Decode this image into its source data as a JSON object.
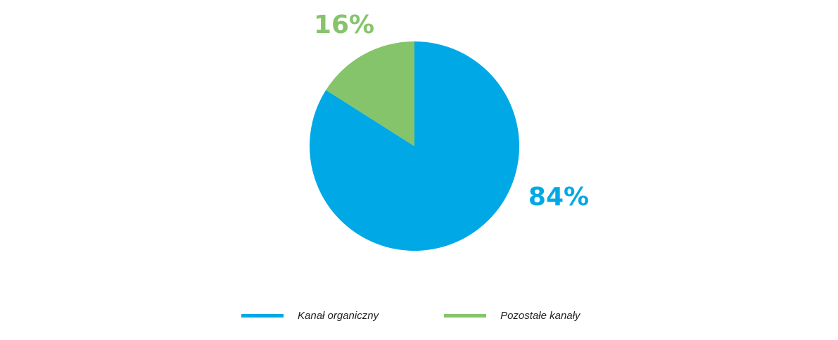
{
  "chart_data": {
    "type": "pie",
    "slices": [
      {
        "label": "Kanał organiczny",
        "value": 84,
        "display": "84%",
        "color": "#00a9e6"
      },
      {
        "label": "Pozostałe kanały",
        "value": 16,
        "display": "16%",
        "color": "#86c46b"
      }
    ],
    "legend_position": "bottom"
  }
}
